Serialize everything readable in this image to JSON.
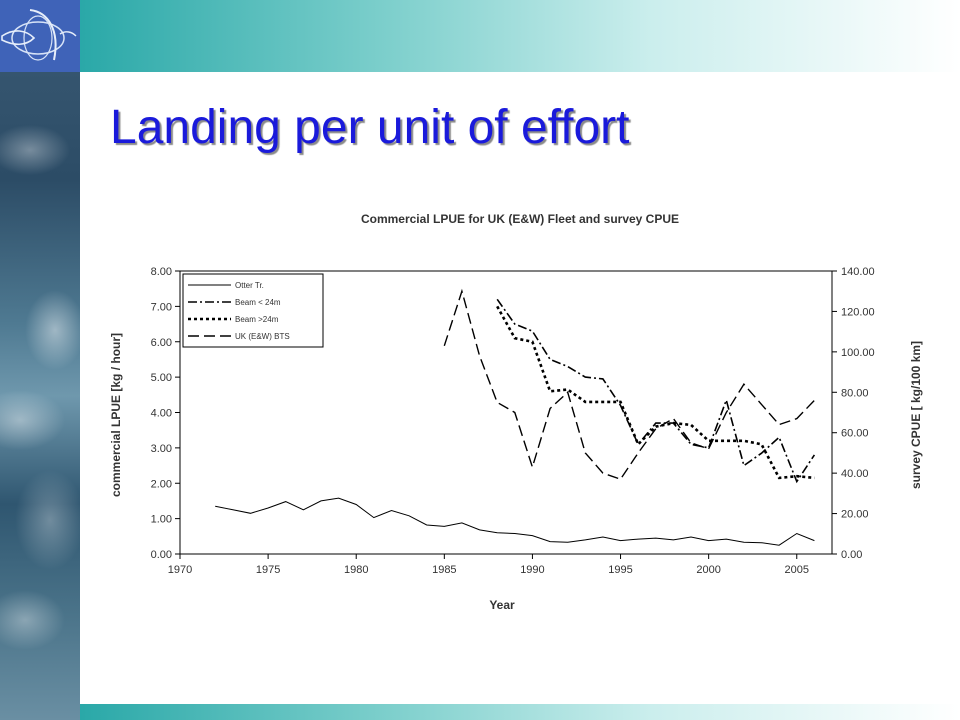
{
  "slide": {
    "title": "Landing per unit of effort",
    "colors": {
      "title": "#1a1adb",
      "band": "#2aa8a8",
      "logo_bg": "#3f63b8"
    },
    "logo_icon": "fish-globe-logo",
    "side_image": "ocean-waves"
  },
  "chart_data": {
    "type": "line",
    "title": "Commercial LPUE for UK (E&W) Fleet and survey CPUE",
    "xlabel": "Year",
    "ylabel": "commercial LPUE [kg / hour]",
    "y2label": "survey CPUE [ kg/100 km]",
    "xlim": [
      1970,
      2007
    ],
    "ylim": [
      0,
      8
    ],
    "y2lim": [
      0,
      140
    ],
    "x_ticks": [
      1970,
      1975,
      1980,
      1985,
      1990,
      1995,
      2000,
      2005
    ],
    "y_ticks": [
      "0.00",
      "1.00",
      "2.00",
      "3.00",
      "4.00",
      "5.00",
      "6.00",
      "7.00",
      "8.00"
    ],
    "y2_ticks": [
      "0.00",
      "20.00",
      "40.00",
      "60.00",
      "80.00",
      "100.00",
      "120.00",
      "140.00"
    ],
    "legend_position": "top-left",
    "grid": false,
    "series": [
      {
        "name": "Otter Tr.",
        "axis": "left",
        "style": "solid",
        "points": [
          [
            1972,
            1.35
          ],
          [
            1973,
            1.25
          ],
          [
            1974,
            1.15
          ],
          [
            1975,
            1.3
          ],
          [
            1976,
            1.48
          ],
          [
            1977,
            1.25
          ],
          [
            1978,
            1.5
          ],
          [
            1979,
            1.58
          ],
          [
            1980,
            1.4
          ],
          [
            1981,
            1.03
          ],
          [
            1982,
            1.23
          ],
          [
            1983,
            1.08
          ],
          [
            1984,
            0.82
          ],
          [
            1985,
            0.78
          ],
          [
            1986,
            0.88
          ],
          [
            1987,
            0.68
          ],
          [
            1988,
            0.6
          ],
          [
            1989,
            0.58
          ],
          [
            1990,
            0.52
          ],
          [
            1991,
            0.35
          ],
          [
            1992,
            0.33
          ],
          [
            1993,
            0.4
          ],
          [
            1994,
            0.48
          ],
          [
            1995,
            0.38
          ],
          [
            1996,
            0.42
          ],
          [
            1997,
            0.45
          ],
          [
            1998,
            0.4
          ],
          [
            1999,
            0.48
          ],
          [
            2000,
            0.38
          ],
          [
            2001,
            0.42
          ],
          [
            2002,
            0.33
          ],
          [
            2003,
            0.32
          ],
          [
            2004,
            0.25
          ],
          [
            2005,
            0.58
          ],
          [
            2006,
            0.38
          ]
        ]
      },
      {
        "name": "Beam < 24m",
        "axis": "left",
        "style": "dashdot",
        "points": [
          [
            1988,
            7.2
          ],
          [
            1989,
            6.5
          ],
          [
            1990,
            6.3
          ],
          [
            1991,
            5.5
          ],
          [
            1992,
            5.3
          ],
          [
            1993,
            5.0
          ],
          [
            1994,
            4.95
          ],
          [
            1995,
            4.2
          ],
          [
            1996,
            3.1
          ],
          [
            1997,
            3.7
          ],
          [
            1998,
            3.7
          ],
          [
            1999,
            3.1
          ],
          [
            2000,
            3.0
          ],
          [
            2001,
            4.35
          ],
          [
            2002,
            2.5
          ],
          [
            2003,
            2.85
          ],
          [
            2004,
            3.3
          ],
          [
            2005,
            2.05
          ],
          [
            2006,
            2.8
          ]
        ]
      },
      {
        "name": "Beam >24m",
        "axis": "left",
        "style": "dotted",
        "points": [
          [
            1988,
            7.0
          ],
          [
            1989,
            6.1
          ],
          [
            1990,
            6.0
          ],
          [
            1991,
            4.6
          ],
          [
            1992,
            4.65
          ],
          [
            1993,
            4.3
          ],
          [
            1994,
            4.3
          ],
          [
            1995,
            4.3
          ],
          [
            1996,
            3.1
          ],
          [
            1997,
            3.6
          ],
          [
            1998,
            3.7
          ],
          [
            1999,
            3.65
          ],
          [
            2000,
            3.2
          ],
          [
            2001,
            3.2
          ],
          [
            2002,
            3.2
          ],
          [
            2003,
            3.1
          ],
          [
            2004,
            2.15
          ],
          [
            2005,
            2.2
          ],
          [
            2006,
            2.15
          ]
        ]
      },
      {
        "name": "UK (E&W) BTS",
        "axis": "right",
        "style": "dashed",
        "points": [
          [
            1985,
            103
          ],
          [
            1986,
            130
          ],
          [
            1987,
            98
          ],
          [
            1988,
            75
          ],
          [
            1989,
            70
          ],
          [
            1990,
            43
          ],
          [
            1991,
            72
          ],
          [
            1992,
            80
          ],
          [
            1993,
            50
          ],
          [
            1994,
            40
          ],
          [
            1995,
            37
          ],
          [
            1996,
            50
          ],
          [
            1997,
            62
          ],
          [
            1998,
            67
          ],
          [
            1999,
            55
          ],
          [
            2000,
            52
          ],
          [
            2001,
            70
          ],
          [
            2002,
            84
          ],
          [
            2003,
            74
          ],
          [
            2004,
            64
          ],
          [
            2005,
            67
          ],
          [
            2006,
            76
          ]
        ]
      }
    ]
  }
}
